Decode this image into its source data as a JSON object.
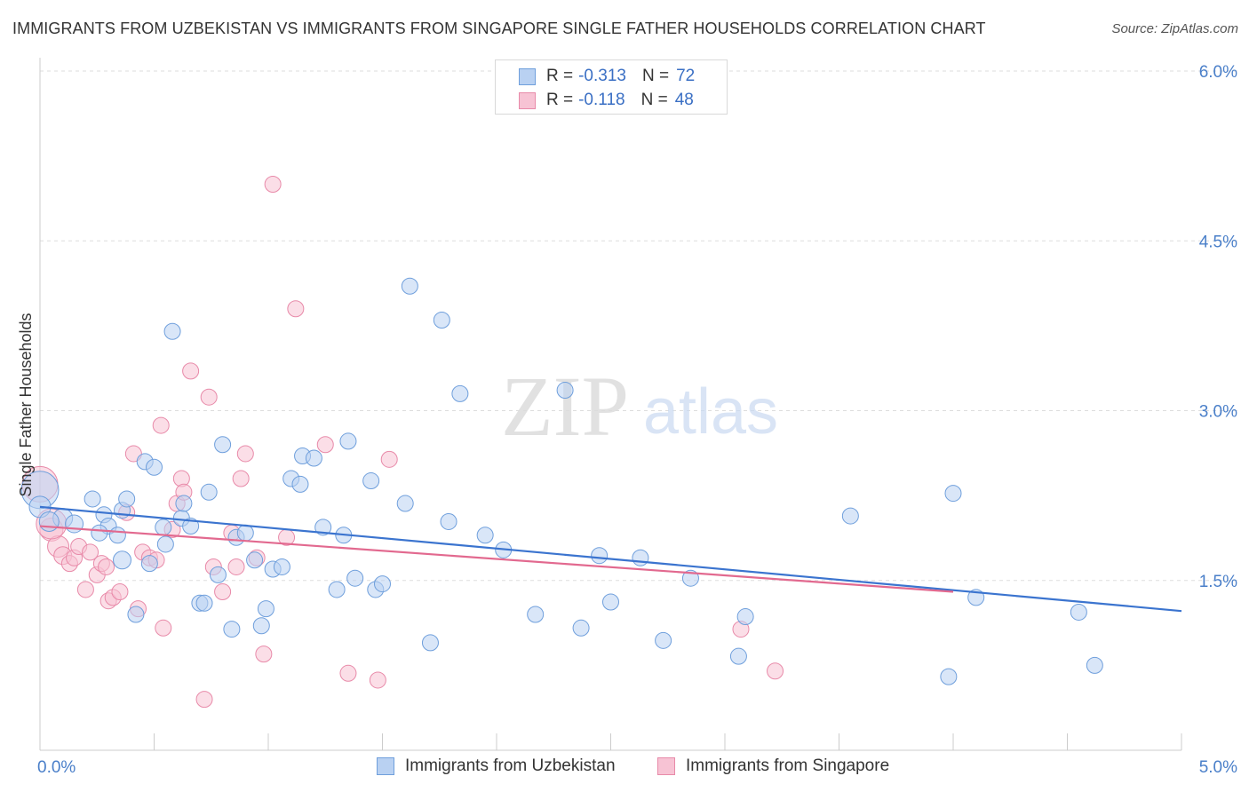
{
  "title": "IMMIGRANTS FROM UZBEKISTAN VS IMMIGRANTS FROM SINGAPORE SINGLE FATHER HOUSEHOLDS CORRELATION CHART",
  "source": "Source: ZipAtlas.com",
  "watermark": {
    "zip": "ZIP",
    "atlas": "atlas"
  },
  "colors": {
    "blue_fill": "#b9d1f2",
    "blue_stroke": "#6f9fdc",
    "blue_line": "#3b74cf",
    "pink_fill": "#f7c3d4",
    "pink_stroke": "#e88aa9",
    "pink_line": "#e2698f",
    "tick_text": "#4a7fc9",
    "grid": "#dddddd"
  },
  "legend_top": [
    {
      "r_label": "R =",
      "r_value": "-0.313",
      "n_label": "N =",
      "n_value": "72"
    },
    {
      "r_label": "R =",
      "r_value": "-0.118",
      "n_label": "N =",
      "n_value": "48"
    }
  ],
  "chart_data": {
    "type": "scatter",
    "title": "IMMIGRANTS FROM UZBEKISTAN VS IMMIGRANTS FROM SINGAPORE SINGLE FATHER HOUSEHOLDS CORRELATION CHART",
    "xlabel": "",
    "ylabel": "Single Father Households",
    "xlim": [
      0,
      5.0
    ],
    "ylim": [
      0,
      6.0
    ],
    "x_ticks": [
      0,
      5.0
    ],
    "x_tick_labels": [
      "0.0%",
      "5.0%"
    ],
    "y_ticks": [
      1.5,
      3.0,
      4.5,
      6.0
    ],
    "y_tick_labels": [
      "1.5%",
      "3.0%",
      "4.5%",
      "6.0%"
    ],
    "grid": true,
    "legend_position": "bottom",
    "series": [
      {
        "name": "Immigrants from Uzbekistan",
        "color": "#6f9fdc",
        "trend": {
          "x": [
            0,
            5.0
          ],
          "y": [
            2.15,
            1.23
          ]
        },
        "points": [
          [
            0.0,
            2.3
          ],
          [
            0.1,
            2.05
          ],
          [
            0.15,
            2.0
          ],
          [
            0.23,
            2.22
          ],
          [
            0.28,
            2.08
          ],
          [
            0.3,
            1.98
          ],
          [
            0.36,
            2.12
          ],
          [
            0.38,
            2.22
          ],
          [
            0.26,
            1.92
          ],
          [
            0.34,
            1.9
          ],
          [
            0.36,
            1.68
          ],
          [
            0.48,
            1.65
          ],
          [
            0.42,
            1.2
          ],
          [
            0.46,
            2.55
          ],
          [
            0.5,
            2.5
          ],
          [
            0.54,
            1.97
          ],
          [
            0.55,
            1.82
          ],
          [
            0.58,
            3.7
          ],
          [
            0.62,
            2.05
          ],
          [
            0.63,
            2.18
          ],
          [
            0.66,
            1.98
          ],
          [
            0.7,
            1.3
          ],
          [
            0.72,
            1.3
          ],
          [
            0.74,
            2.28
          ],
          [
            0.78,
            1.55
          ],
          [
            0.8,
            2.7
          ],
          [
            0.84,
            1.07
          ],
          [
            0.86,
            1.88
          ],
          [
            0.9,
            1.92
          ],
          [
            0.94,
            1.68
          ],
          [
            0.97,
            1.1
          ],
          [
            0.99,
            1.25
          ],
          [
            1.02,
            1.6
          ],
          [
            1.06,
            1.62
          ],
          [
            1.1,
            2.4
          ],
          [
            1.14,
            2.35
          ],
          [
            1.15,
            2.6
          ],
          [
            1.2,
            2.58
          ],
          [
            1.24,
            1.97
          ],
          [
            1.3,
            1.42
          ],
          [
            1.33,
            1.9
          ],
          [
            1.35,
            2.73
          ],
          [
            1.38,
            1.52
          ],
          [
            1.45,
            2.38
          ],
          [
            1.47,
            1.42
          ],
          [
            1.5,
            1.47
          ],
          [
            1.6,
            2.18
          ],
          [
            1.62,
            4.1
          ],
          [
            1.71,
            0.95
          ],
          [
            1.76,
            3.8
          ],
          [
            1.79,
            2.02
          ],
          [
            1.84,
            3.15
          ],
          [
            1.95,
            1.9
          ],
          [
            2.03,
            1.77
          ],
          [
            2.17,
            1.2
          ],
          [
            2.3,
            3.18
          ],
          [
            2.37,
            1.08
          ],
          [
            2.45,
            1.72
          ],
          [
            2.5,
            1.31
          ],
          [
            2.63,
            1.7
          ],
          [
            2.73,
            0.97
          ],
          [
            2.85,
            1.52
          ],
          [
            3.06,
            0.83
          ],
          [
            3.09,
            1.18
          ],
          [
            3.55,
            2.07
          ],
          [
            3.98,
            0.65
          ],
          [
            4.0,
            2.27
          ],
          [
            4.1,
            1.35
          ],
          [
            4.55,
            1.22
          ],
          [
            4.62,
            0.75
          ],
          [
            0.0,
            2.15
          ],
          [
            0.04,
            2.02
          ]
        ],
        "sizes": [
          42,
          22,
          20,
          18,
          18,
          18,
          18,
          18,
          18,
          18,
          20,
          18,
          18,
          18,
          18,
          18,
          18,
          18,
          18,
          18,
          18,
          18,
          18,
          18,
          18,
          18,
          18,
          18,
          18,
          18,
          18,
          18,
          18,
          18,
          18,
          18,
          18,
          18,
          18,
          18,
          18,
          18,
          18,
          18,
          18,
          18,
          18,
          18,
          18,
          18,
          18,
          18,
          18,
          18,
          18,
          18,
          18,
          18,
          18,
          18,
          18,
          18,
          18,
          18,
          18,
          18,
          18,
          18,
          18,
          18,
          24,
          22
        ]
      },
      {
        "name": "Immigrants from Singapore",
        "color": "#e88aa9",
        "trend": {
          "x": [
            0,
            4.0
          ],
          "y": [
            1.98,
            1.4
          ]
        },
        "points": [
          [
            0.0,
            2.35
          ],
          [
            0.05,
            1.95
          ],
          [
            0.08,
            1.8
          ],
          [
            0.1,
            1.72
          ],
          [
            0.13,
            1.65
          ],
          [
            0.15,
            1.7
          ],
          [
            0.17,
            1.8
          ],
          [
            0.2,
            1.42
          ],
          [
            0.22,
            1.75
          ],
          [
            0.25,
            1.55
          ],
          [
            0.27,
            1.65
          ],
          [
            0.29,
            1.62
          ],
          [
            0.3,
            1.32
          ],
          [
            0.32,
            1.35
          ],
          [
            0.35,
            1.4
          ],
          [
            0.38,
            2.1
          ],
          [
            0.41,
            2.62
          ],
          [
            0.43,
            1.25
          ],
          [
            0.45,
            1.75
          ],
          [
            0.48,
            1.7
          ],
          [
            0.51,
            1.68
          ],
          [
            0.53,
            2.87
          ],
          [
            0.54,
            1.08
          ],
          [
            0.58,
            1.95
          ],
          [
            0.6,
            2.18
          ],
          [
            0.62,
            2.4
          ],
          [
            0.63,
            2.28
          ],
          [
            0.66,
            3.35
          ],
          [
            0.72,
            0.45
          ],
          [
            0.74,
            3.12
          ],
          [
            0.76,
            1.62
          ],
          [
            0.8,
            1.4
          ],
          [
            0.84,
            1.92
          ],
          [
            0.86,
            1.62
          ],
          [
            0.88,
            2.4
          ],
          [
            0.9,
            2.62
          ],
          [
            0.95,
            1.7
          ],
          [
            0.98,
            0.85
          ],
          [
            1.02,
            5.0
          ],
          [
            1.08,
            1.88
          ],
          [
            1.12,
            3.9
          ],
          [
            1.25,
            2.7
          ],
          [
            1.35,
            0.68
          ],
          [
            1.48,
            0.62
          ],
          [
            1.53,
            2.57
          ],
          [
            3.07,
            1.07
          ],
          [
            3.22,
            0.7
          ],
          [
            0.05,
            2.0
          ]
        ],
        "sizes": [
          40,
          26,
          24,
          20,
          18,
          18,
          18,
          18,
          18,
          18,
          18,
          18,
          18,
          18,
          18,
          18,
          18,
          18,
          18,
          18,
          18,
          18,
          18,
          18,
          18,
          18,
          18,
          18,
          18,
          18,
          18,
          18,
          18,
          18,
          18,
          18,
          18,
          18,
          18,
          18,
          18,
          18,
          18,
          18,
          18,
          18,
          18,
          34
        ]
      }
    ]
  }
}
